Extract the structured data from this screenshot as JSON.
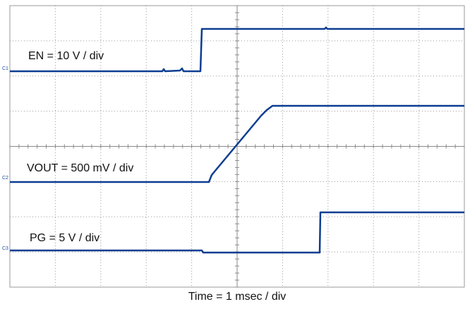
{
  "traces": [
    {
      "marker": "C1",
      "label": "EN = 10 V / div"
    },
    {
      "marker": "C2",
      "label": "VOUT = 500 mV / div"
    },
    {
      "marker": "C3",
      "label": "PG = 5 V / div"
    }
  ],
  "x_axis_label": "Time = 1 msec / div"
}
